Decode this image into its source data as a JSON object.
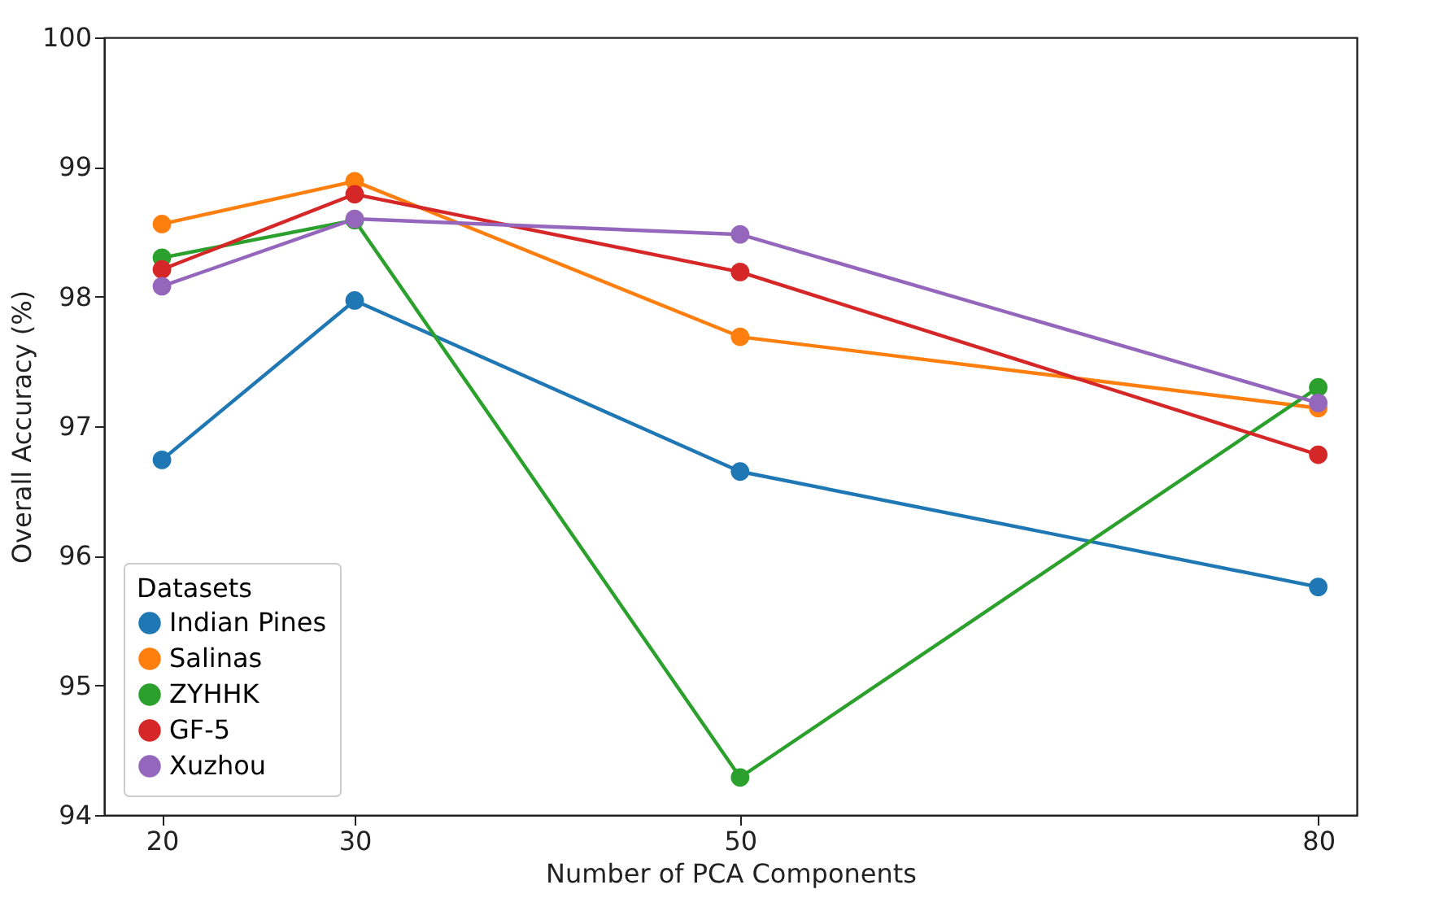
{
  "chart_data": {
    "type": "line",
    "xlabel": "Number of PCA Components",
    "ylabel": "Overall Accuracy (%)",
    "legend_title": "Datasets",
    "x": [
      20,
      30,
      50,
      80
    ],
    "xlim": [
      17,
      82
    ],
    "xticks": [
      20,
      30,
      50,
      80
    ],
    "ylim": [
      94,
      100
    ],
    "yticks": [
      94,
      95,
      96,
      97,
      98,
      99,
      100
    ],
    "grid": false,
    "legend": "bottom left",
    "marker": "circle",
    "line_style": "solid",
    "series": [
      {
        "name": "Indian Pines",
        "color": "#1f77b4",
        "values": [
          96.74,
          97.97,
          96.65,
          95.76
        ]
      },
      {
        "name": "Salinas",
        "color": "#ff7f0e",
        "values": [
          98.56,
          98.89,
          97.69,
          97.14
        ]
      },
      {
        "name": "ZYHHK",
        "color": "#2ca02c",
        "values": [
          98.3,
          98.59,
          94.29,
          97.3
        ]
      },
      {
        "name": "GF-5",
        "color": "#d62728",
        "values": [
          98.21,
          98.79,
          98.19,
          96.78
        ]
      },
      {
        "name": "Xuzhou",
        "color": "#9467bd",
        "values": [
          98.08,
          98.6,
          98.48,
          97.18
        ]
      }
    ]
  }
}
